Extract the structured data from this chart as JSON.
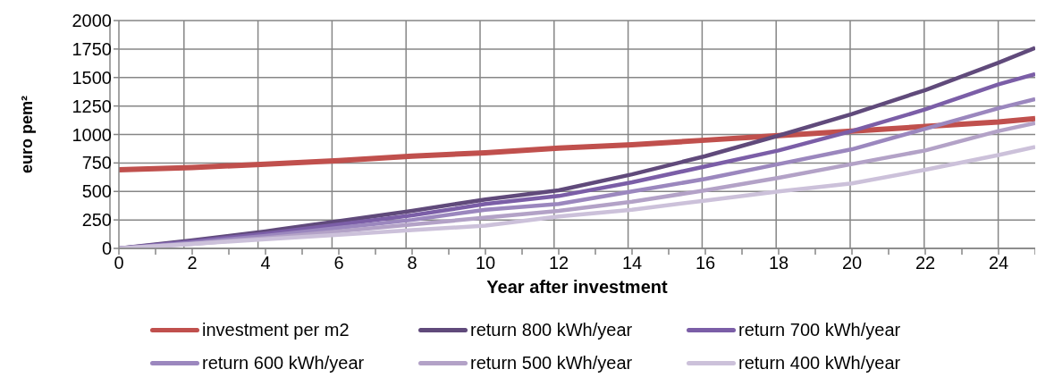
{
  "chart_data": {
    "type": "line",
    "xlabel": "Year after investment",
    "ylabel": "euro pem²",
    "x": [
      0,
      2,
      4,
      6,
      8,
      10,
      12,
      14,
      16,
      18,
      20,
      22,
      24,
      25
    ],
    "series": [
      {
        "name": "investment per m2",
        "color": "#c0504d",
        "values": [
          690,
          710,
          740,
          770,
          810,
          840,
          880,
          910,
          950,
          990,
          1030,
          1070,
          1110,
          1140
        ]
      },
      {
        "name": "return 800 kWh/year",
        "color": "#604a7b",
        "values": [
          0,
          70,
          150,
          240,
          330,
          430,
          510,
          650,
          810,
          990,
          1180,
          1390,
          1630,
          1760
        ]
      },
      {
        "name": "return 700 kWh/year",
        "color": "#7b5ea7",
        "values": [
          0,
          60,
          130,
          210,
          290,
          390,
          460,
          580,
          720,
          860,
          1030,
          1220,
          1440,
          1530
        ]
      },
      {
        "name": "return 600 kWh/year",
        "color": "#9b87be",
        "values": [
          0,
          50,
          110,
          180,
          250,
          340,
          390,
          500,
          610,
          740,
          870,
          1050,
          1230,
          1310
        ]
      },
      {
        "name": "return 500 kWh/year",
        "color": "#b3a2c7",
        "values": [
          0,
          40,
          90,
          150,
          210,
          270,
          330,
          410,
          510,
          620,
          740,
          860,
          1030,
          1100
        ]
      },
      {
        "name": "return 400 kWh/year",
        "color": "#ccc1da",
        "values": [
          0,
          40,
          80,
          120,
          160,
          200,
          280,
          340,
          420,
          500,
          570,
          690,
          820,
          890
        ]
      }
    ],
    "xlim": [
      0,
      25
    ],
    "xticks": [
      0,
      {
        "value": 1,
        "label": null
      },
      2,
      {
        "value": 3,
        "label": null
      },
      4,
      {
        "value": 5,
        "label": null
      },
      6,
      {
        "value": 7,
        "label": null
      },
      8,
      {
        "value": 9,
        "label": null
      },
      10,
      {
        "value": 11,
        "label": null
      },
      12,
      {
        "value": 13,
        "label": null
      },
      14,
      {
        "value": 15,
        "label": null
      },
      16,
      {
        "value": 17,
        "label": null
      },
      18,
      {
        "value": 19,
        "label": null
      },
      20,
      {
        "value": 21,
        "label": null
      },
      22,
      {
        "value": 23,
        "label": null
      },
      24,
      {
        "value": 25,
        "label": null
      }
    ],
    "ylim": [
      0,
      2000
    ],
    "yticks": [
      0,
      250,
      500,
      750,
      1000,
      1250,
      1500,
      1750,
      2000
    ],
    "grid": true,
    "legend": "bottom",
    "marker": "none",
    "line_style": "solid"
  }
}
